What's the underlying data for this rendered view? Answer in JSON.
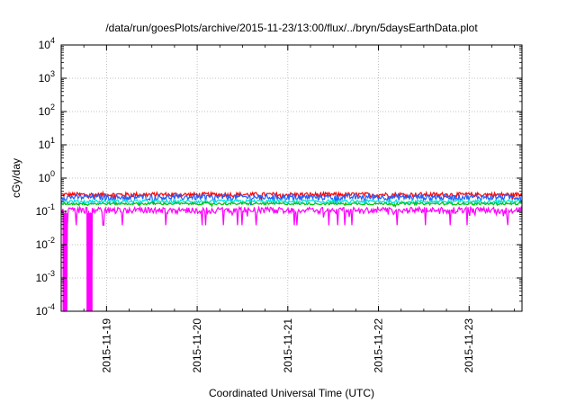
{
  "chart_data": {
    "type": "line",
    "title": "/data/run/goesPlots/archive/2015-11-23/13:00/flux/../bryn/5daysEarthData.plot",
    "xlabel": "Coordinated Universal Time (UTC)",
    "ylabel": "cGy/day",
    "x_range": [
      "2015-11-18T12:00",
      "2015-11-23T14:00"
    ],
    "x_ticks": [
      "2015-11-19",
      "2015-11-20",
      "2015-11-21",
      "2015-11-22",
      "2015-11-23"
    ],
    "y_scale": "log",
    "ylim": [
      0.0001,
      10000
    ],
    "y_ticks": [
      {
        "base": "10",
        "exp": "-4",
        "value": 0.0001
      },
      {
        "base": "10",
        "exp": "-3",
        "value": 0.001
      },
      {
        "base": "10",
        "exp": "-2",
        "value": 0.01
      },
      {
        "base": "10",
        "exp": "-1",
        "value": 0.1
      },
      {
        "base": "10",
        "exp": "0",
        "value": 1
      },
      {
        "base": "10",
        "exp": "1",
        "value": 10
      },
      {
        "base": "10",
        "exp": "2",
        "value": 100
      },
      {
        "base": "10",
        "exp": "3",
        "value": 1000
      },
      {
        "base": "10",
        "exp": "4",
        "value": 10000
      }
    ],
    "grid": true,
    "series": [
      {
        "color": "#ff0000",
        "level": 0.32,
        "noise": 0.16
      },
      {
        "color": "#2060ff",
        "level": 0.27,
        "noise": 0.2
      },
      {
        "color": "#00e0e0",
        "level": 0.2,
        "noise": 0.12
      },
      {
        "color": "#00c000",
        "level": 0.17,
        "noise": 0.08
      },
      {
        "color": "#ff00ff",
        "level": 0.11,
        "noise": 0.22
      }
    ],
    "dropouts": [
      {
        "x": "2015-11-18T12:40",
        "value": 0.0001
      },
      {
        "x": "2015-11-18T13:00",
        "value": 0.0001
      },
      {
        "x": "2015-11-18T13:20",
        "value": 0.0001
      },
      {
        "x": "2015-11-18T19:00",
        "value": 0.0001
      },
      {
        "x": "2015-11-18T19:30",
        "value": 0.0001
      },
      {
        "x": "2015-11-18T20:00",
        "value": 0.0001
      }
    ]
  }
}
